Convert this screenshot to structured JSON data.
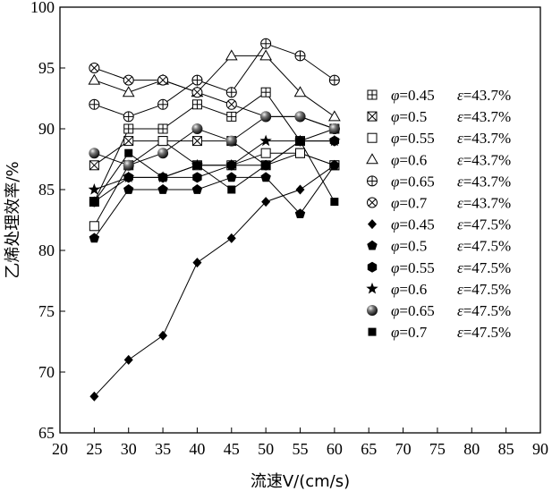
{
  "chart_data": {
    "type": "line",
    "title": "",
    "xlabel": "流速V/(cm/s)",
    "ylabel": "乙烯处理效率/%",
    "xlim": [
      20,
      90
    ],
    "ylim": [
      65,
      100
    ],
    "xticks": [
      20,
      25,
      30,
      35,
      40,
      45,
      50,
      55,
      60,
      65,
      70,
      75,
      80,
      85,
      90
    ],
    "yticks": [
      65,
      70,
      75,
      80,
      85,
      90,
      95,
      100
    ],
    "grid": false,
    "legend_position": "right",
    "x": [
      25,
      30,
      35,
      40,
      45,
      50,
      55,
      60
    ],
    "series": [
      {
        "name": "φ=0.45 ε=43.7%",
        "phi_label": "φ",
        "phi_value": "=0.45",
        "eps_label": "ε",
        "eps_value": "=43.7%",
        "marker": "square-plus",
        "values": [
          84,
          90,
          90,
          92,
          91,
          93,
          89,
          90
        ]
      },
      {
        "name": "φ=0.5 ε=43.7%",
        "phi_label": "φ",
        "phi_value": "=0.5",
        "eps_label": "ε",
        "eps_value": "=43.7%",
        "marker": "square-x",
        "values": [
          87,
          89,
          89,
          89,
          89,
          87,
          88,
          87
        ]
      },
      {
        "name": "φ=0.55 ε=43.7%",
        "phi_label": "φ",
        "phi_value": "=0.55",
        "eps_label": "ε",
        "eps_value": "=43.7%",
        "marker": "square-open",
        "values": [
          82,
          87,
          89,
          87,
          87,
          88,
          88,
          87
        ]
      },
      {
        "name": "φ=0.6 ε=43.7%",
        "phi_label": "φ",
        "phi_value": "=0.6",
        "eps_label": "ε",
        "eps_value": "=43.7%",
        "marker": "triangle-open",
        "values": [
          94,
          93,
          94,
          93,
          96,
          96,
          93,
          91
        ]
      },
      {
        "name": "φ=0.65 ε=43.7%",
        "phi_label": "φ",
        "phi_value": "=0.65",
        "eps_label": "ε",
        "eps_value": "=43.7%",
        "marker": "circle-plus",
        "values": [
          92,
          91,
          92,
          94,
          93,
          97,
          96,
          94
        ]
      },
      {
        "name": "φ=0.7 ε=43.7%",
        "phi_label": "φ",
        "phi_value": "=0.7",
        "eps_label": "ε",
        "eps_value": "=43.7%",
        "marker": "circle-x",
        "values": [
          95,
          94,
          94,
          93,
          92,
          91,
          91,
          90
        ]
      },
      {
        "name": "φ=0.45 ε=47.5%",
        "phi_label": "φ",
        "phi_value": "=0.45",
        "eps_label": "ε",
        "eps_value": "=47.5%",
        "marker": "diamond-filled",
        "values": [
          68,
          71,
          73,
          79,
          81,
          84,
          85,
          87
        ]
      },
      {
        "name": "φ=0.5 ε=47.5%",
        "phi_label": "φ",
        "phi_value": "=0.5",
        "eps_label": "ε",
        "eps_value": "=47.5%",
        "marker": "pentagon-filled",
        "values": [
          81,
          85,
          85,
          85,
          86,
          86,
          83,
          87
        ]
      },
      {
        "name": "φ=0.55 ε=47.5%",
        "phi_label": "φ",
        "phi_value": "=0.55",
        "eps_label": "ε",
        "eps_value": "=47.5%",
        "marker": "hexagon-filled",
        "values": [
          84,
          86,
          86,
          86,
          87,
          87,
          89,
          89
        ]
      },
      {
        "name": "φ=0.6 ε=47.5%",
        "phi_label": "φ",
        "phi_value": "=0.6",
        "eps_label": "ε",
        "eps_value": "=47.5%",
        "marker": "star-filled",
        "values": [
          85,
          86,
          86,
          87,
          87,
          89,
          89,
          89
        ]
      },
      {
        "name": "φ=0.65 ε=47.5%",
        "phi_label": "φ",
        "phi_value": "=0.65",
        "eps_label": "ε",
        "eps_value": "=47.5%",
        "marker": "sphere-filled",
        "values": [
          88,
          87,
          88,
          90,
          89,
          91,
          91,
          90
        ]
      },
      {
        "name": "φ=0.7 ε=47.5%",
        "phi_label": "φ",
        "phi_value": "=0.7",
        "eps_label": "ε",
        "eps_value": "=47.5%",
        "marker": "square-filled",
        "values": [
          84,
          88,
          86,
          87,
          85,
          87,
          89,
          84
        ]
      }
    ]
  }
}
